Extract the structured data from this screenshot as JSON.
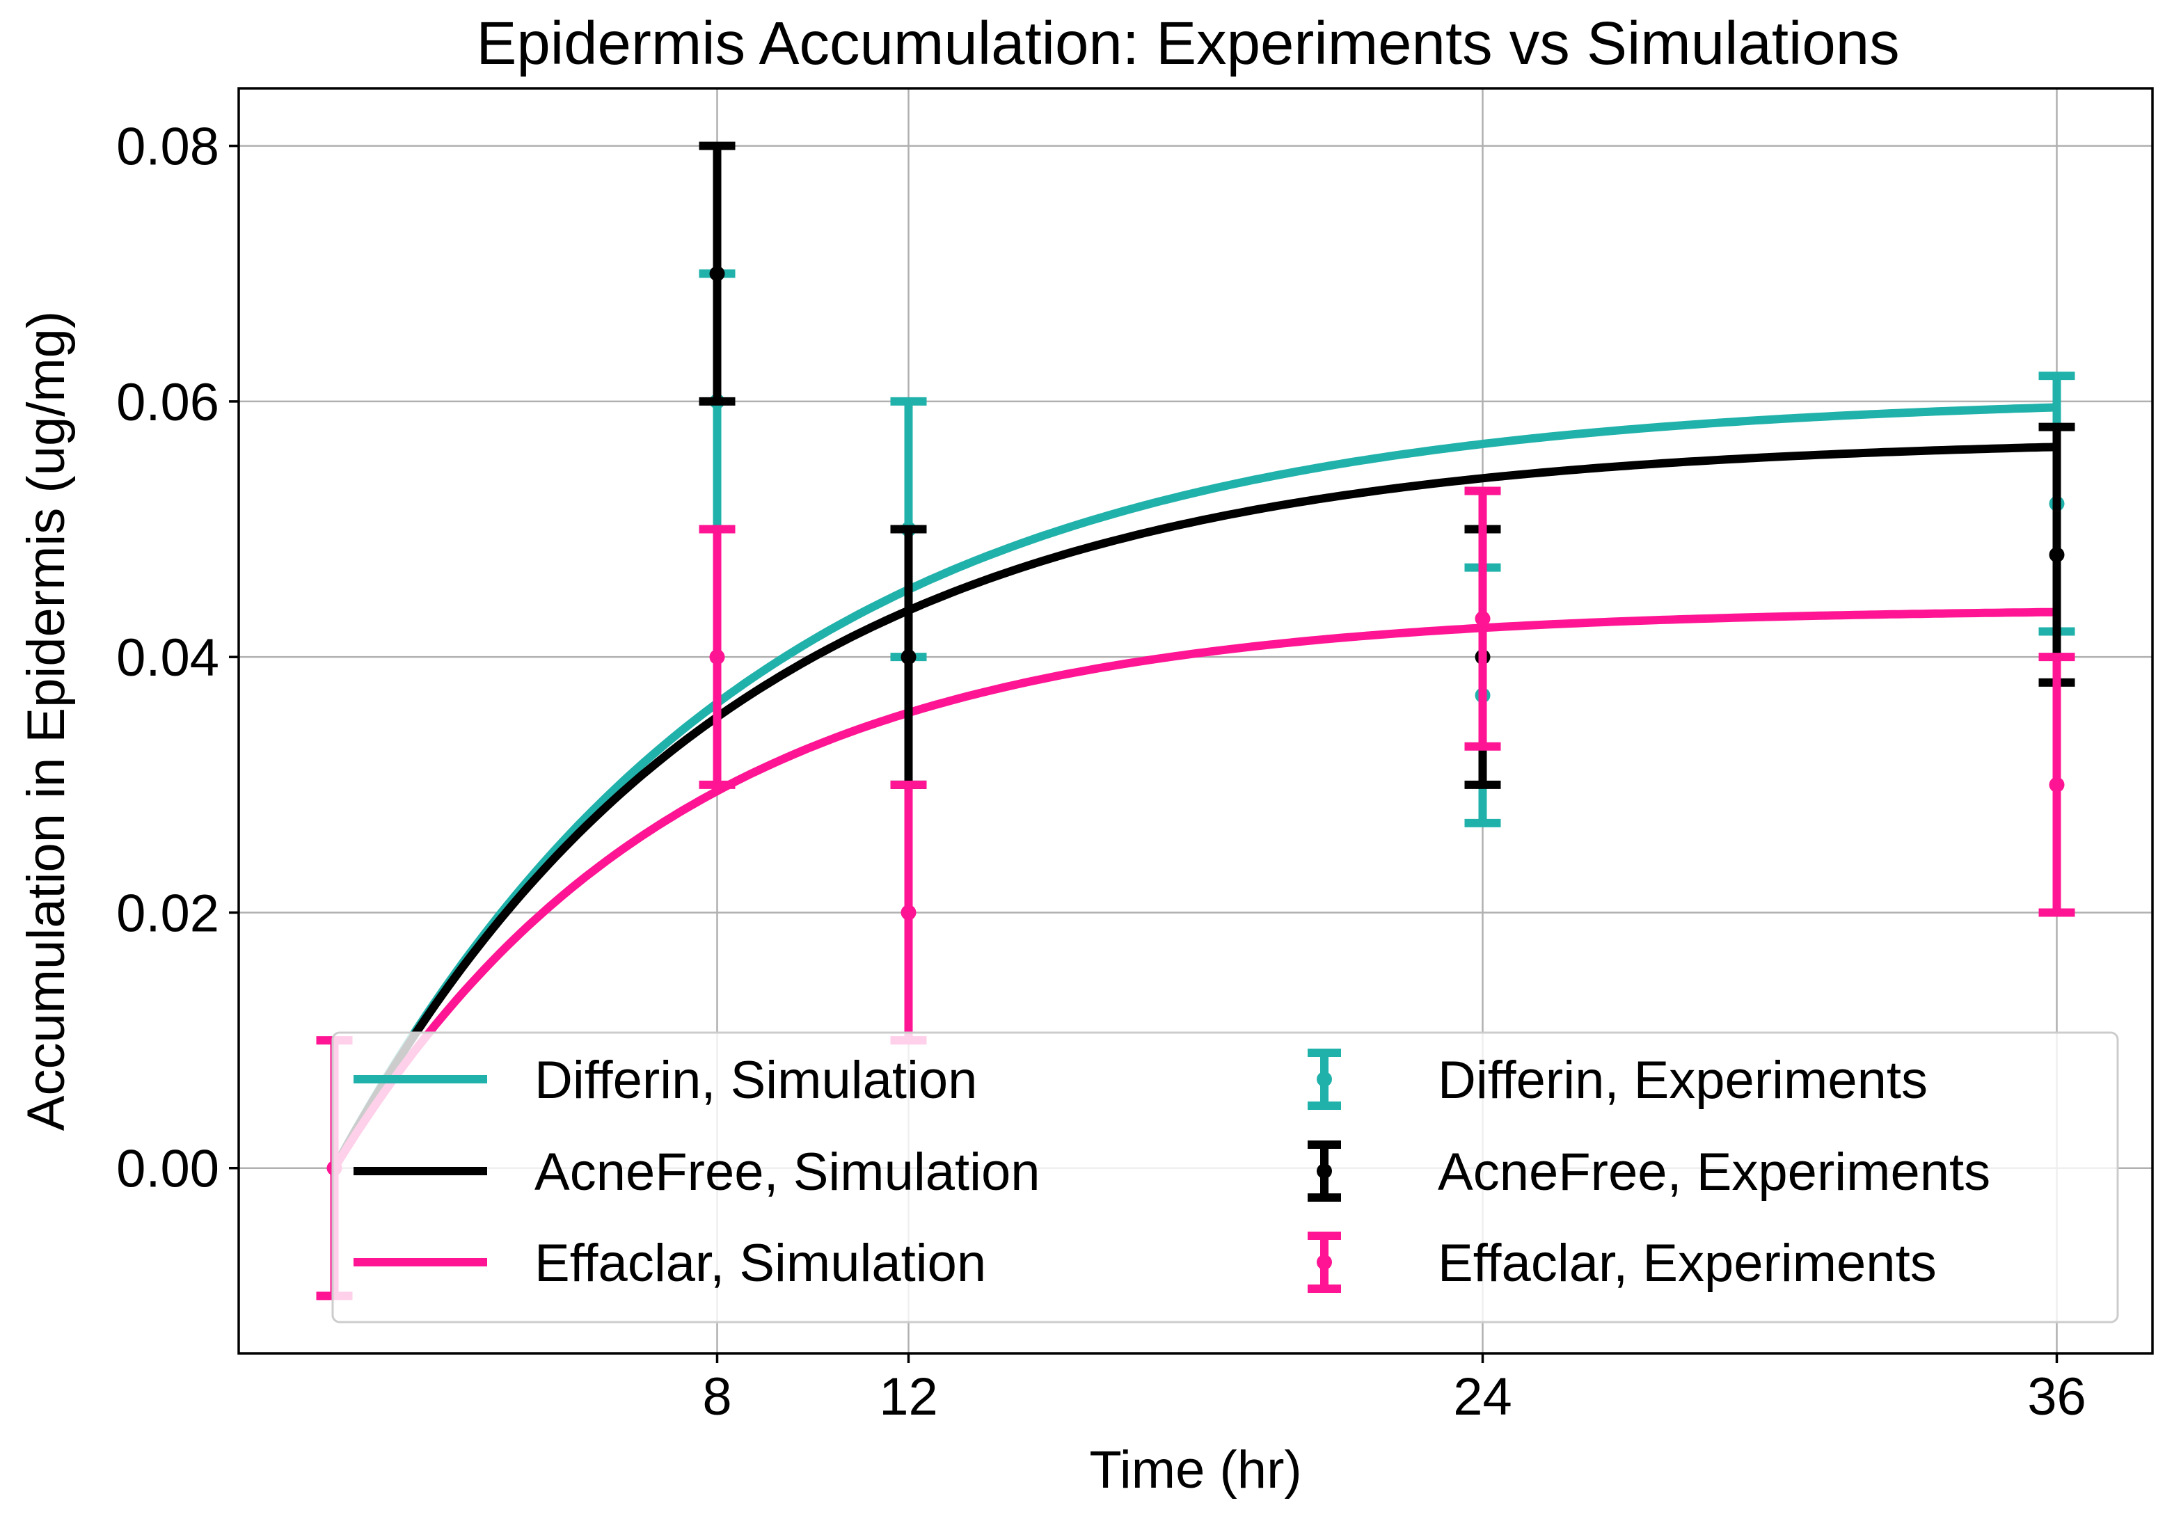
{
  "chart_data": {
    "type": "line",
    "title": "Epidermis Accumulation: Experiments vs Simulations",
    "xlabel": "Time (hr)",
    "ylabel": "Accumulation in Epidermis (ug/mg)",
    "xlim": [
      -2,
      38
    ],
    "ylim": [
      -0.0145,
      0.0845
    ],
    "x_ticks": [
      8,
      12,
      24,
      36
    ],
    "x_tick_labels": [
      "8",
      "12",
      "24",
      "36"
    ],
    "y_ticks": [
      0.0,
      0.02,
      0.04,
      0.06,
      0.08
    ],
    "y_tick_labels": [
      "0.00",
      "0.02",
      "0.04",
      "0.06",
      "0.08"
    ],
    "grid": true,
    "legend_position": "lower-right",
    "legend_columns": 2,
    "simulations": [
      {
        "name": "Differin, Simulation",
        "color": "#20b2aa",
        "plateau": 0.0605,
        "rate_per_hr": 0.115
      },
      {
        "name": "AcneFree, Simulation",
        "color": "#000000",
        "plateau": 0.0572,
        "rate_per_hr": 0.12
      },
      {
        "name": "Effaclar, Simulation",
        "color": "#ff1493",
        "plateau": 0.0438,
        "rate_per_hr": 0.14
      }
    ],
    "experiments": [
      {
        "name": "Differin, Experiments",
        "color": "#20b2aa",
        "x": [
          8,
          12,
          24,
          36
        ],
        "y": [
          0.06,
          0.05,
          0.037,
          0.052
        ],
        "yerr": [
          0.01,
          0.01,
          0.01,
          0.01
        ]
      },
      {
        "name": "AcneFree, Experiments",
        "color": "#000000",
        "x": [
          8,
          12,
          24,
          36
        ],
        "y": [
          0.07,
          0.04,
          0.04,
          0.048
        ],
        "yerr": [
          0.01,
          0.01,
          0.01,
          0.01
        ]
      },
      {
        "name": "Effaclar, Experiments",
        "color": "#ff1493",
        "x": [
          0,
          8,
          12,
          24,
          36
        ],
        "y": [
          0.0,
          0.04,
          0.02,
          0.043,
          0.03
        ],
        "yerr": [
          0.01,
          0.01,
          0.01,
          0.01,
          0.01
        ]
      }
    ]
  }
}
